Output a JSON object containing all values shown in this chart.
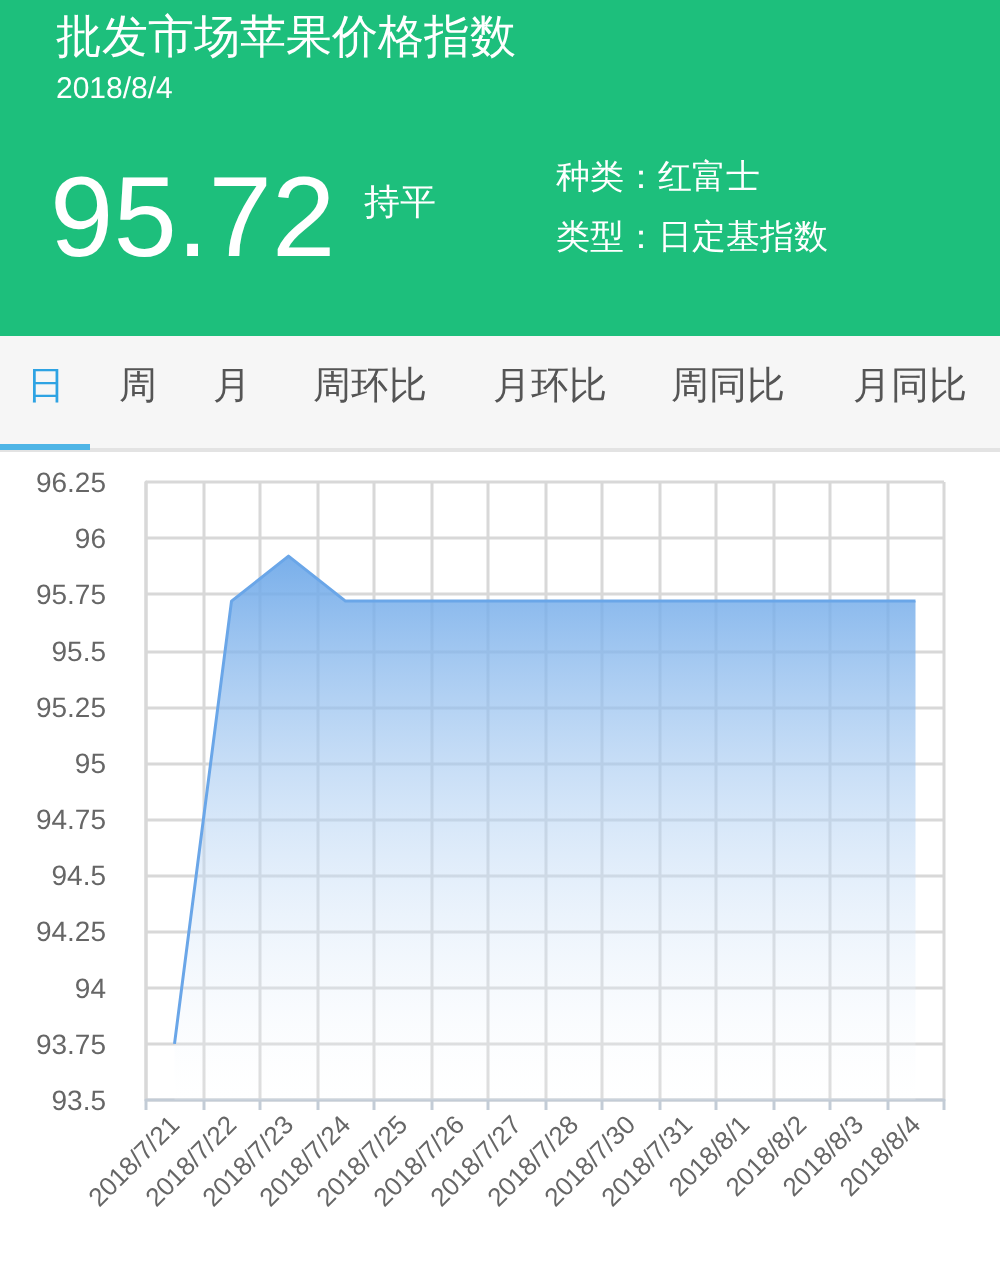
{
  "chart_data": {
    "type": "area",
    "title": "批发市场苹果价格指数",
    "subtitle": "2018/8/4",
    "annotations": [
      "95.72",
      "持平",
      "种类：红富士",
      "类型：日定基指数",
      "日",
      "周",
      "月",
      "周环比",
      "月环比",
      "周同比",
      "月同比"
    ],
    "categories": [
      "2018/7/21",
      "2018/7/22",
      "2018/7/23",
      "2018/7/24",
      "2018/7/25",
      "2018/7/26",
      "2018/7/27",
      "2018/7/28",
      "2018/7/30",
      "2018/7/31",
      "2018/8/1",
      "2018/8/2",
      "2018/8/3",
      "2018/8/4"
    ],
    "values": [
      93.75,
      95.72,
      95.92,
      95.72,
      95.72,
      95.72,
      95.72,
      95.72,
      95.72,
      95.72,
      95.72,
      95.72,
      95.72,
      95.72
    ],
    "color": "#6aa6e8",
    "ylim": [
      93.5,
      96.25
    ],
    "yticks": [
      93.5,
      93.75,
      94,
      94.25,
      94.5,
      94.75,
      95,
      95.25,
      95.5,
      95.75,
      96,
      96.25
    ],
    "grid": true,
    "marker": "none"
  }
}
